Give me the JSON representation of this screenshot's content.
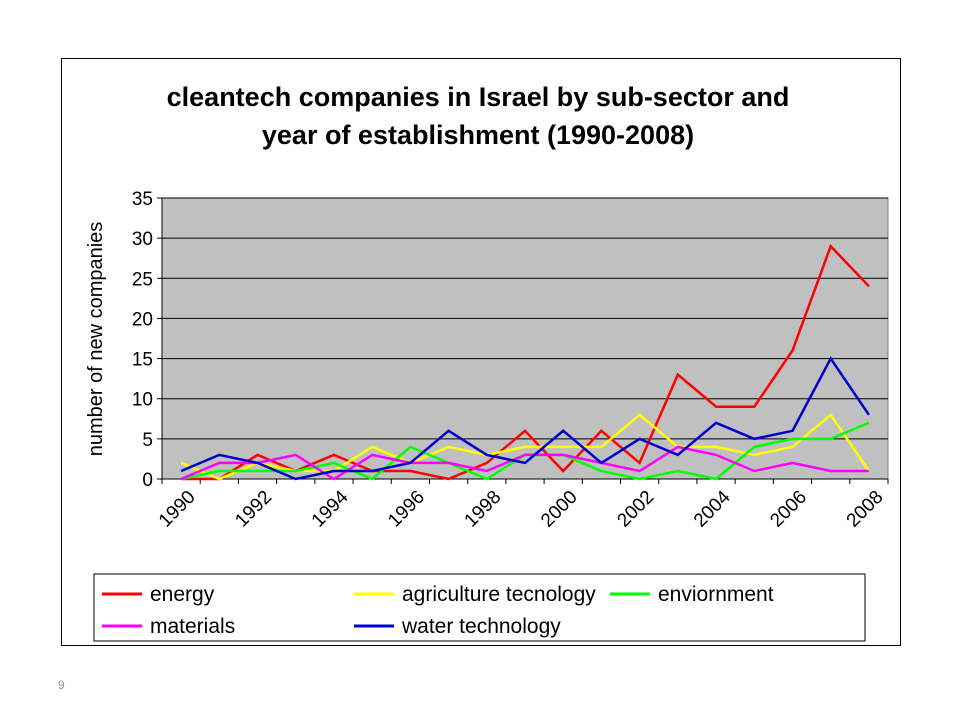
{
  "page": {
    "page_number": "9"
  },
  "chart_data": {
    "type": "line",
    "title_lines": [
      "cleantech companies in Israel by sub-sector and",
      "year of establishment (1990-2008)"
    ],
    "xlabel": "",
    "ylabel": "number of new companies",
    "ylim": [
      0,
      35
    ],
    "yticks": [
      "0",
      "5",
      "10",
      "15",
      "20",
      "25",
      "30",
      "35"
    ],
    "x": [
      1990,
      1991,
      1992,
      1993,
      1994,
      1995,
      1996,
      1997,
      1998,
      1999,
      2000,
      2001,
      2002,
      2003,
      2004,
      2005,
      2006,
      2007,
      2008
    ],
    "xtick_labels": [
      "1990",
      "1992",
      "1994",
      "1996",
      "1998",
      "2000",
      "2002",
      "2004",
      "2006",
      "2008"
    ],
    "grid": "horizontal",
    "plot_background": "#c0c0c0",
    "legend_position": "bottom",
    "series": [
      {
        "name": "energy",
        "color": "#ff0000",
        "values": [
          0,
          0,
          3,
          1,
          3,
          1,
          1,
          0,
          2,
          6,
          1,
          6,
          2,
          13,
          9,
          9,
          16,
          29,
          24
        ]
      },
      {
        "name": "agriculture tecnology",
        "color": "#ffff00",
        "values": [
          2,
          0,
          2,
          1,
          1,
          4,
          2,
          4,
          3,
          4,
          4,
          4,
          8,
          4,
          4,
          3,
          4,
          8,
          1
        ]
      },
      {
        "name": "enviornment",
        "color": "#00ff00",
        "values": [
          0,
          1,
          1,
          1,
          2,
          0,
          4,
          2,
          0,
          3,
          3,
          1,
          0,
          1,
          0,
          4,
          5,
          5,
          7
        ]
      },
      {
        "name": "materials",
        "color": "#ff00ff",
        "values": [
          0,
          2,
          2,
          3,
          0,
          3,
          2,
          2,
          1,
          3,
          3,
          2,
          1,
          4,
          3,
          1,
          2,
          1,
          1
        ]
      },
      {
        "name": "water technology",
        "color": "#0000cc",
        "values": [
          1,
          3,
          2,
          0,
          1,
          1,
          2,
          6,
          3,
          2,
          6,
          2,
          5,
          3,
          7,
          5,
          6,
          15,
          8
        ]
      }
    ]
  }
}
